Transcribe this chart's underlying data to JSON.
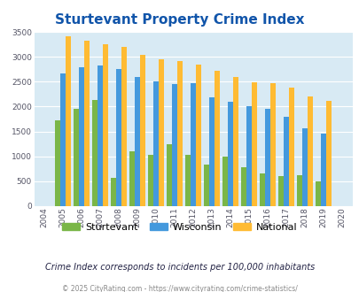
{
  "title": "Sturtevant Property Crime Index",
  "years": [
    "2004",
    "2005",
    "2006",
    "2007",
    "2008",
    "2009",
    "2010",
    "2011",
    "2012",
    "2013",
    "2014",
    "2015",
    "2016",
    "2017",
    "2018",
    "2019",
    "2020"
  ],
  "sturtevant": [
    0,
    1720,
    1960,
    2130,
    560,
    1100,
    1030,
    1250,
    1030,
    830,
    990,
    780,
    650,
    600,
    610,
    490,
    0
  ],
  "wisconsin": [
    0,
    2670,
    2800,
    2830,
    2750,
    2600,
    2510,
    2460,
    2470,
    2190,
    2090,
    2000,
    1950,
    1800,
    1560,
    1460,
    0
  ],
  "national": [
    0,
    3420,
    3330,
    3260,
    3200,
    3040,
    2950,
    2910,
    2850,
    2720,
    2590,
    2490,
    2470,
    2380,
    2200,
    2120,
    0
  ],
  "sturtevant_color": "#7ab648",
  "wisconsin_color": "#4499dd",
  "national_color": "#ffbb33",
  "plot_bg_color": "#d8eaf4",
  "ylim": [
    0,
    3500
  ],
  "yticks": [
    0,
    500,
    1000,
    1500,
    2000,
    2500,
    3000,
    3500
  ],
  "title_color": "#1155aa",
  "title_fontsize": 11,
  "legend_labels": [
    "Sturtevant",
    "Wisconsin",
    "National"
  ],
  "footer_text": "Crime Index corresponds to incidents per 100,000 inhabitants",
  "copyright_text": "© 2025 CityRating.com - https://www.cityrating.com/crime-statistics/",
  "bar_width": 0.28
}
